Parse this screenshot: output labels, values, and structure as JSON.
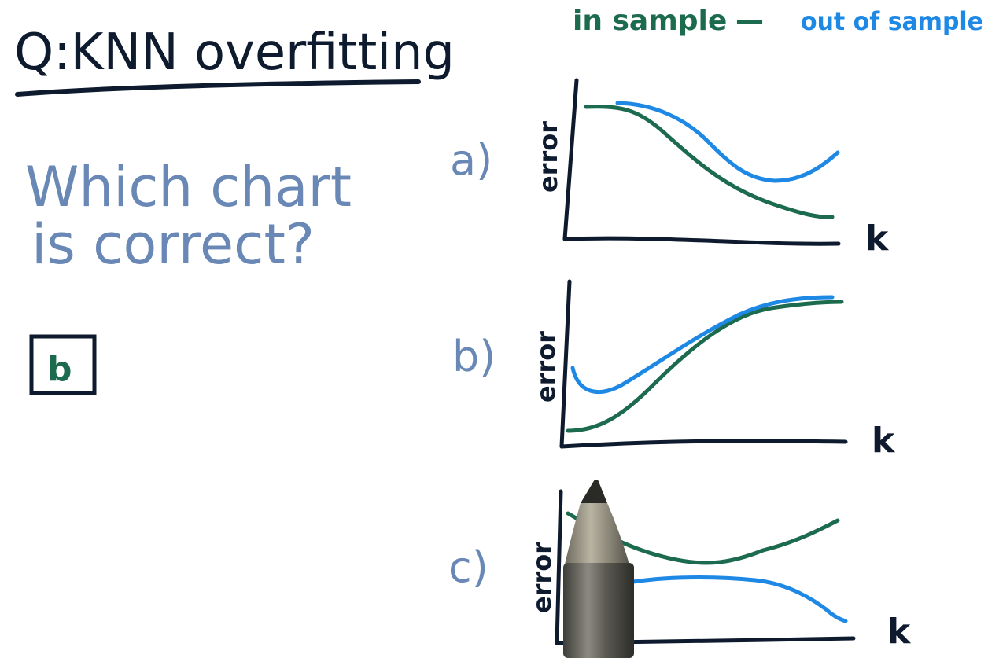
{
  "title": "Q:KNN overfitting",
  "legend": {
    "in_sample": "in sample",
    "dash": "—",
    "out_of_sample": "out of sample"
  },
  "question": {
    "line1": "Which chart",
    "line2": "is correct?"
  },
  "answer": "b",
  "colors": {
    "ink": "#0e1a2e",
    "in_sample": "#1d6b4f",
    "out_of_sample": "#1e88e5",
    "question": "#6a88b6"
  },
  "charts": [
    {
      "option": "a)",
      "ylabel": "error",
      "xlabel": "k",
      "in_sample_shape": "decreasing",
      "out_of_sample_shape": "decreasing-then-increasing"
    },
    {
      "option": "b)",
      "ylabel": "error",
      "xlabel": "k",
      "in_sample_shape": "increasing",
      "out_of_sample_shape": "dip-then-increasing"
    },
    {
      "option": "c)",
      "ylabel": "error",
      "xlabel": "k",
      "in_sample_shape": "dip-then-increasing",
      "out_of_sample_shape": "rising-then-decreasing"
    }
  ],
  "icons": {
    "pen": "pen-icon"
  }
}
